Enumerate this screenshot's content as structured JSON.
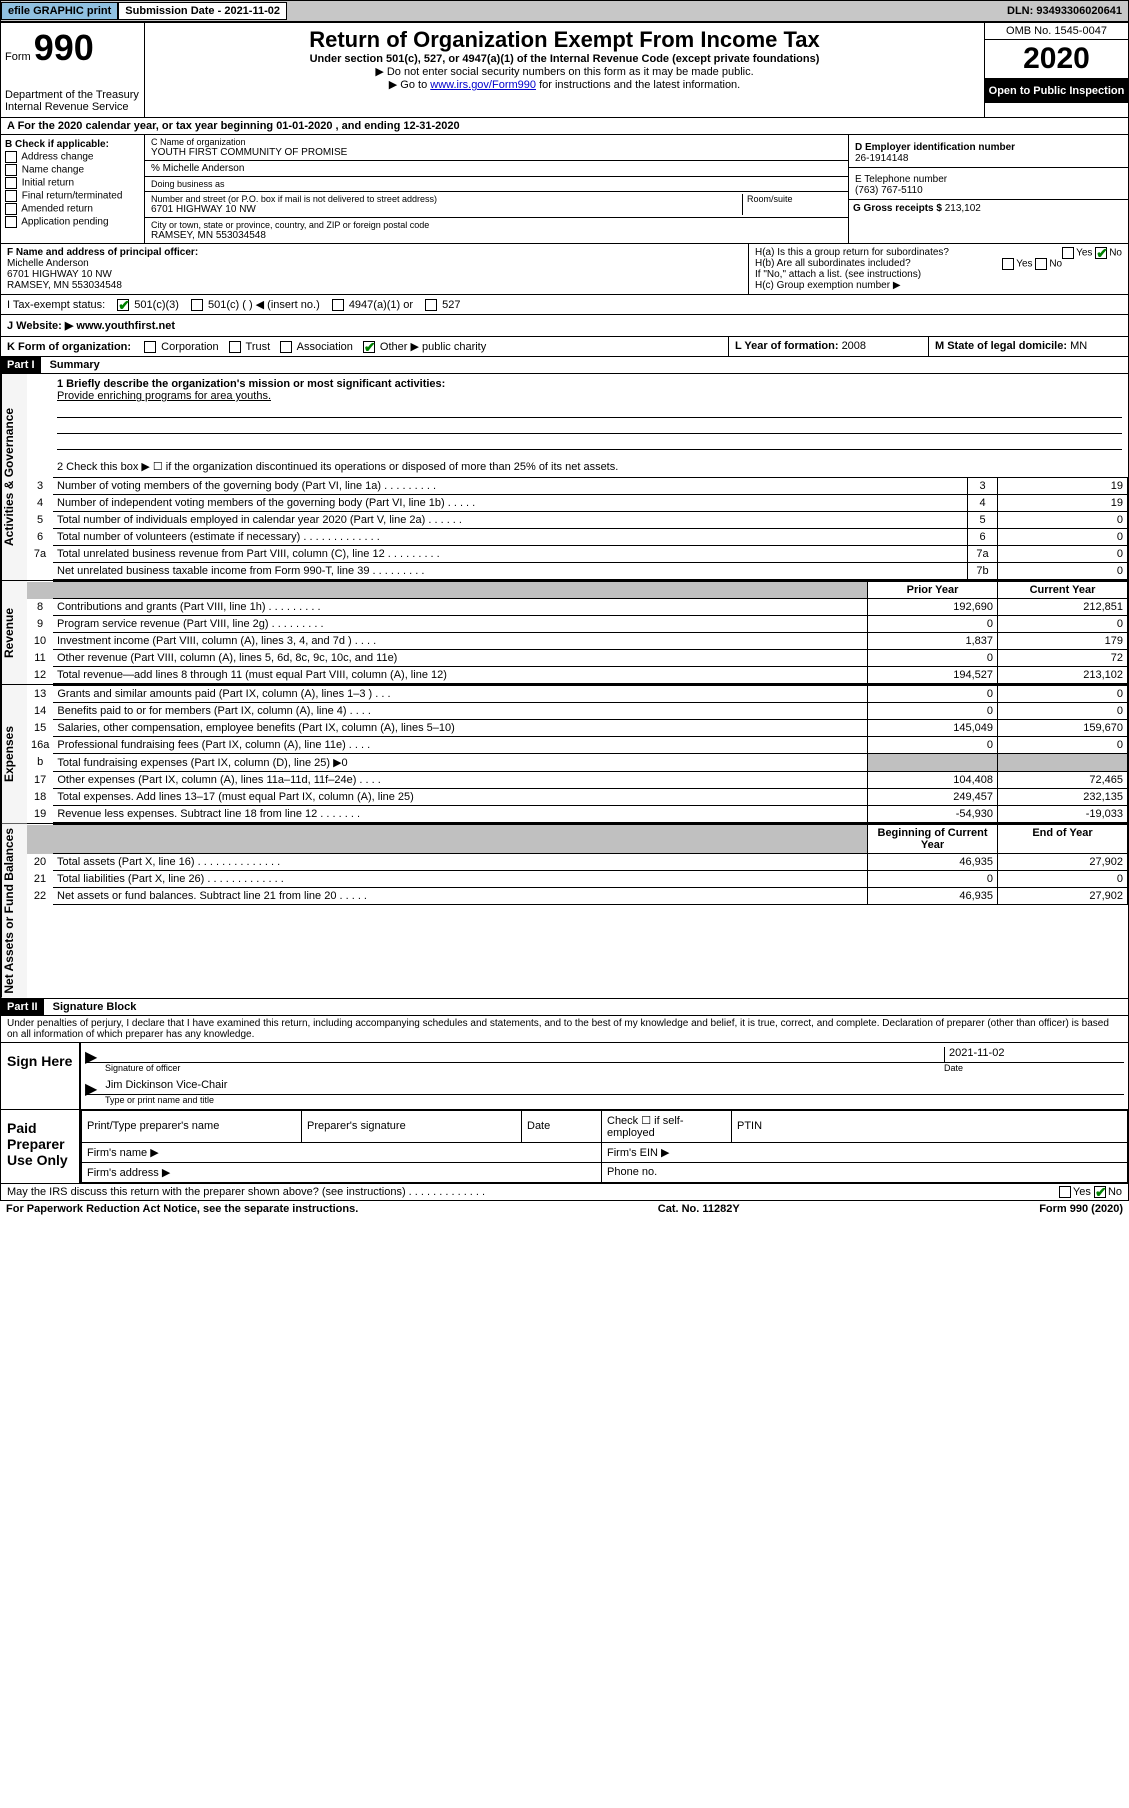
{
  "topbar": {
    "efile": "efile GRAPHIC print",
    "sub_date_label": "Submission Date - ",
    "sub_date": "2021-11-02",
    "dln": "DLN: 93493306020641"
  },
  "header": {
    "form_prefix": "Form",
    "form_no": "990",
    "dept": "Department of the Treasury\nInternal Revenue Service",
    "title": "Return of Organization Exempt From Income Tax",
    "sub": "Under section 501(c), 527, or 4947(a)(1) of the Internal Revenue Code (except private foundations)",
    "note1": "▶ Do not enter social security numbers on this form as it may be made public.",
    "note2_pre": "▶ Go to ",
    "note2_link": "www.irs.gov/Form990",
    "note2_post": " for instructions and the latest information.",
    "omb": "OMB No. 1545-0047",
    "year": "2020",
    "inspect": "Open to Public Inspection"
  },
  "rowA": "A For the 2020 calendar year, or tax year beginning 01-01-2020    , and ending 12-31-2020",
  "boxB": {
    "label": "B Check if applicable:",
    "items": [
      "Address change",
      "Name change",
      "Initial return",
      "Final return/terminated",
      "Amended return",
      "Application pending"
    ]
  },
  "boxC": {
    "name_label": "C Name of organization",
    "name": "YOUTH FIRST COMMUNITY OF PROMISE",
    "care_of": "% Michelle Anderson",
    "dba_label": "Doing business as",
    "street_label": "Number and street (or P.O. box if mail is not delivered to street address)",
    "room_label": "Room/suite",
    "street": "6701 HIGHWAY 10 NW",
    "city_label": "City or town, state or province, country, and ZIP or foreign postal code",
    "city": "RAMSEY, MN  553034548"
  },
  "boxD": {
    "ein_label": "D  Employer identification number",
    "ein": "26-1914148",
    "phone_label": "E Telephone number",
    "phone": "(763) 767-5110",
    "gross_label": "G Gross receipts $ ",
    "gross": "213,102"
  },
  "poff": {
    "label": "F Name and address of principal officer:",
    "name": "Michelle Anderson",
    "street": "6701 HIGHWAY 10 NW",
    "city": "RAMSEY, MN  553034548",
    "Ha": "H(a)  Is this a group return for subordinates?",
    "Hb": "H(b)  Are all subordinates included?",
    "Hnote": "If \"No,\" attach a list. (see instructions)",
    "Hc": "H(c)  Group exemption number ▶"
  },
  "rowI": {
    "label": "I   Tax-exempt status:",
    "o1": "501(c)(3)",
    "o2": "501(c) (  ) ◀ (insert no.)",
    "o3": "4947(a)(1) or",
    "o4": "527"
  },
  "rowJ": {
    "label": "J   Website: ▶  ",
    "url": "www.youthfirst.net"
  },
  "rowK": {
    "left_label": "K Form of organization:",
    "opts": [
      "Corporation",
      "Trust",
      "Association",
      "Other ▶"
    ],
    "other_val": "public charity",
    "mid_label": "L Year of formation: ",
    "mid_val": "2008",
    "right_label": "M State of legal domicile: ",
    "right_val": "MN"
  },
  "part1": {
    "header": "Part I",
    "title": "Summary",
    "q1_label": "1  Briefly describe the organization's mission or most significant activities:",
    "q1_text": "Provide enriching programs for area youths.",
    "q2": "2    Check this box ▶ ☐  if the organization discontinued its operations or disposed of more than 25% of its net assets.",
    "rows_ag": [
      [
        "3",
        "Number of voting members of the governing body (Part VI, line 1a)  .    .    .    .    .    .    .    .    .",
        "3",
        "19"
      ],
      [
        "4",
        "Number of independent voting members of the governing body (Part VI, line 1b)   .    .    .    .    .",
        "4",
        "19"
      ],
      [
        "5",
        "Total number of individuals employed in calendar year 2020 (Part V, line 2a)   .    .    .    .    .    .",
        "5",
        "0"
      ],
      [
        "6",
        "Total number of volunteers (estimate if necessary)   .    .    .    .    .    .    .    .    .    .    .    .    .",
        "6",
        "0"
      ],
      [
        "7a",
        "Total unrelated business revenue from Part VIII, column (C), line 12  .    .    .    .    .    .    .    .    .",
        "7a",
        "0"
      ],
      [
        "",
        "Net unrelated business taxable income from Form 990-T, line 39   .    .    .    .    .    .    .    .    .",
        "7b",
        "0"
      ]
    ],
    "head_prior": "Prior Year",
    "head_curr": "Current Year",
    "rows_rev": [
      [
        "8",
        "Contributions and grants (Part VIII, line 1h)   .    .    .    .    .    .    .    .    .",
        "192,690",
        "212,851"
      ],
      [
        "9",
        "Program service revenue (Part VIII, line 2g)    .    .    .    .    .    .    .    .    .",
        "0",
        "0"
      ],
      [
        "10",
        "Investment income (Part VIII, column (A), lines 3, 4, and 7d )   .    .    .    .",
        "1,837",
        "179"
      ],
      [
        "11",
        "Other revenue (Part VIII, column (A), lines 5, 6d, 8c, 9c, 10c, and 11e)",
        "0",
        "72"
      ],
      [
        "12",
        "Total revenue—add lines 8 through 11 (must equal Part VIII, column (A), line 12)",
        "194,527",
        "213,102"
      ]
    ],
    "rows_exp": [
      [
        "13",
        "Grants and similar amounts paid (Part IX, column (A), lines 1–3 )    .    .    .",
        "0",
        "0"
      ],
      [
        "14",
        "Benefits paid to or for members (Part IX, column (A), line 4)   .    .    .    .",
        "0",
        "0"
      ],
      [
        "15",
        "Salaries, other compensation, employee benefits (Part IX, column (A), lines 5–10)",
        "145,049",
        "159,670"
      ],
      [
        "16a",
        "Professional fundraising fees (Part IX, column (A), line 11e)   .    .    .    .",
        "0",
        "0"
      ],
      [
        "b",
        "Total fundraising expenses (Part IX, column (D), line 25) ▶0",
        "GREY",
        "GREY"
      ],
      [
        "17",
        "Other expenses (Part IX, column (A), lines 11a–11d, 11f–24e)  .    .    .    .",
        "104,408",
        "72,465"
      ],
      [
        "18",
        "Total expenses. Add lines 13–17 (must equal Part IX, column (A), line 25)",
        "249,457",
        "232,135"
      ],
      [
        "19",
        "Revenue less expenses. Subtract line 18 from line 12  .    .    .    .    .    .    .",
        "-54,930",
        "-19,033"
      ]
    ],
    "head_beg": "Beginning of Current Year",
    "head_end": "End of Year",
    "rows_na": [
      [
        "20",
        "Total assets (Part X, line 16)  .    .    .    .    .    .    .    .    .    .    .    .    .    .",
        "46,935",
        "27,902"
      ],
      [
        "21",
        "Total liabilities (Part X, line 26)   .    .    .    .    .    .    .    .    .    .    .    .    .",
        "0",
        "0"
      ],
      [
        "22",
        "Net assets or fund balances. Subtract line 21 from line 20  .    .    .    .    .",
        "46,935",
        "27,902"
      ]
    ]
  },
  "sides": {
    "ag": "Activities & Governance",
    "rev": "Revenue",
    "exp": "Expenses",
    "na": "Net Assets or Fund Balances"
  },
  "part2": {
    "header": "Part II",
    "title": "Signature Block",
    "penalties": "Under penalties of perjury, I declare that I have examined this return, including accompanying schedules and statements, and to the best of my knowledge and belief, it is true, correct, and complete. Declaration of preparer (other than officer) is based on all information of which preparer has any knowledge.",
    "sign_here": "Sign Here",
    "sig_officer": "Signature of officer",
    "date_label": "Date",
    "date": "2021-11-02",
    "name_title": "Jim Dickinson  Vice-Chair",
    "type_print": "Type or print name and title",
    "paid": "Paid Preparer Use Only",
    "p_name": "Print/Type preparer's name",
    "p_sig": "Preparer's signature",
    "p_date": "Date",
    "p_check": "Check ☐ if self-employed",
    "p_ptin": "PTIN",
    "firm_name": "Firm's name    ▶",
    "firm_ein": "Firm's EIN ▶",
    "firm_addr": "Firm's address ▶",
    "firm_phone": "Phone no."
  },
  "footer": {
    "irs_q": "May the IRS discuss this return with the preparer shown above? (see instructions)   .    .    .    .    .    .    .    .    .    .    .    .    .",
    "pra": "For Paperwork Reduction Act Notice, see the separate instructions.",
    "cat": "Cat. No. 11282Y",
    "form": "Form 990 (2020)"
  }
}
